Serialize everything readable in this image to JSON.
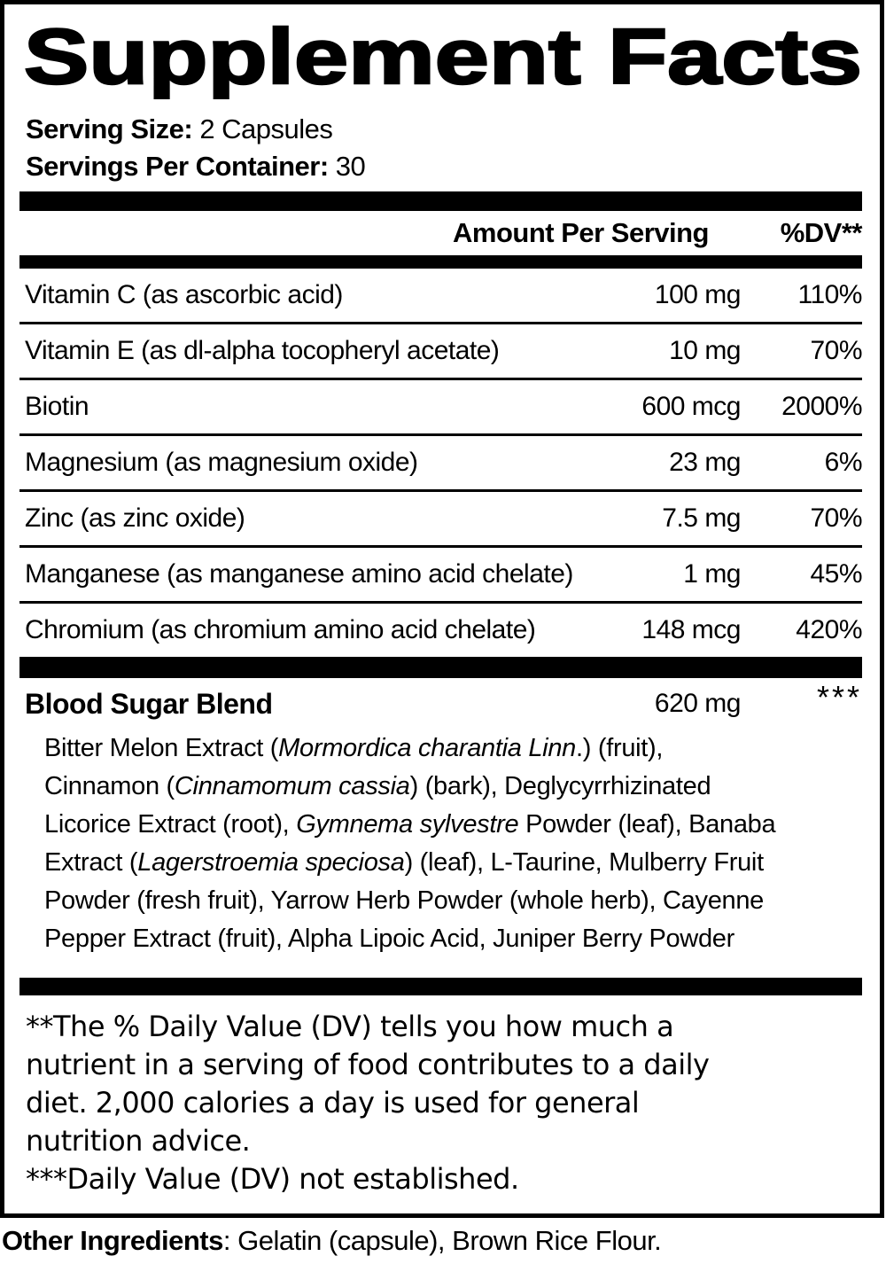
{
  "title": "Supplement Facts",
  "serving": {
    "size_label": "Serving Size:",
    "size_value": "2 Capsules",
    "container_label": "Servings Per Container:",
    "container_value": "30"
  },
  "table": {
    "header": {
      "amount": "Amount Per Serving",
      "dv": "%DV**"
    },
    "rows": [
      {
        "name": "Vitamin C (as ascorbic acid)",
        "amount": "100 mg",
        "dv": "110%"
      },
      {
        "name": "Vitamin E (as dl-alpha tocopheryl acetate)",
        "amount": "10 mg",
        "dv": "70%"
      },
      {
        "name": "Biotin",
        "amount": "600 mcg",
        "dv": "2000%"
      },
      {
        "name": "Magnesium (as magnesium oxide)",
        "amount": "23 mg",
        "dv": "6%"
      },
      {
        "name": "Zinc (as zinc oxide)",
        "amount": "7.5 mg",
        "dv": "70%"
      },
      {
        "name": "Manganese (as manganese amino acid chelate)",
        "amount": "1 mg",
        "dv": "45%"
      },
      {
        "name": "Chromium (as chromium amino acid chelate)",
        "amount": "148 mcg",
        "dv": "420%"
      }
    ]
  },
  "blend": {
    "name": "Blood Sugar Blend",
    "amount": "620 mg",
    "dv": "***",
    "description_lines": [
      [
        {
          "t": "Bitter Melon Extract ("
        },
        {
          "t": "Mormordica charantia Linn",
          "i": true
        },
        {
          "t": ".) (fruit),"
        }
      ],
      [
        {
          "t": "Cinnamon ("
        },
        {
          "t": "Cinnamomum cassia",
          "i": true
        },
        {
          "t": ") (bark), Deglycyrrhizinated"
        }
      ],
      [
        {
          "t": "Licorice Extract (root), "
        },
        {
          "t": "Gymnema sylvestre",
          "i": true
        },
        {
          "t": " Powder (leaf), Banaba"
        }
      ],
      [
        {
          "t": "Extract ("
        },
        {
          "t": "Lagerstroemia speciosa",
          "i": true
        },
        {
          "t": ") (leaf), L-Taurine, Mulberry Fruit"
        }
      ],
      [
        {
          "t": "Powder (fresh fruit), Yarrow Herb Powder (whole herb), Cayenne"
        }
      ],
      [
        {
          "t": "Pepper Extract (fruit), Alpha Lipoic Acid, Juniper Berry Powder"
        }
      ]
    ]
  },
  "footnotes": {
    "dv_lines": [
      "**The % Daily Value (DV) tells you how much a",
      "nutrient in a serving of food contributes to a daily",
      "diet. 2,000 calories a day is used for general",
      "nutrition advice."
    ],
    "not_established": "***Daily Value (DV) not established."
  },
  "other_ingredients": {
    "label": "Other Ingredients",
    "value": ": Gelatin (capsule), Brown Rice Flour."
  },
  "colors": {
    "text": "#000000",
    "background": "#ffffff",
    "rule": "#000000"
  }
}
